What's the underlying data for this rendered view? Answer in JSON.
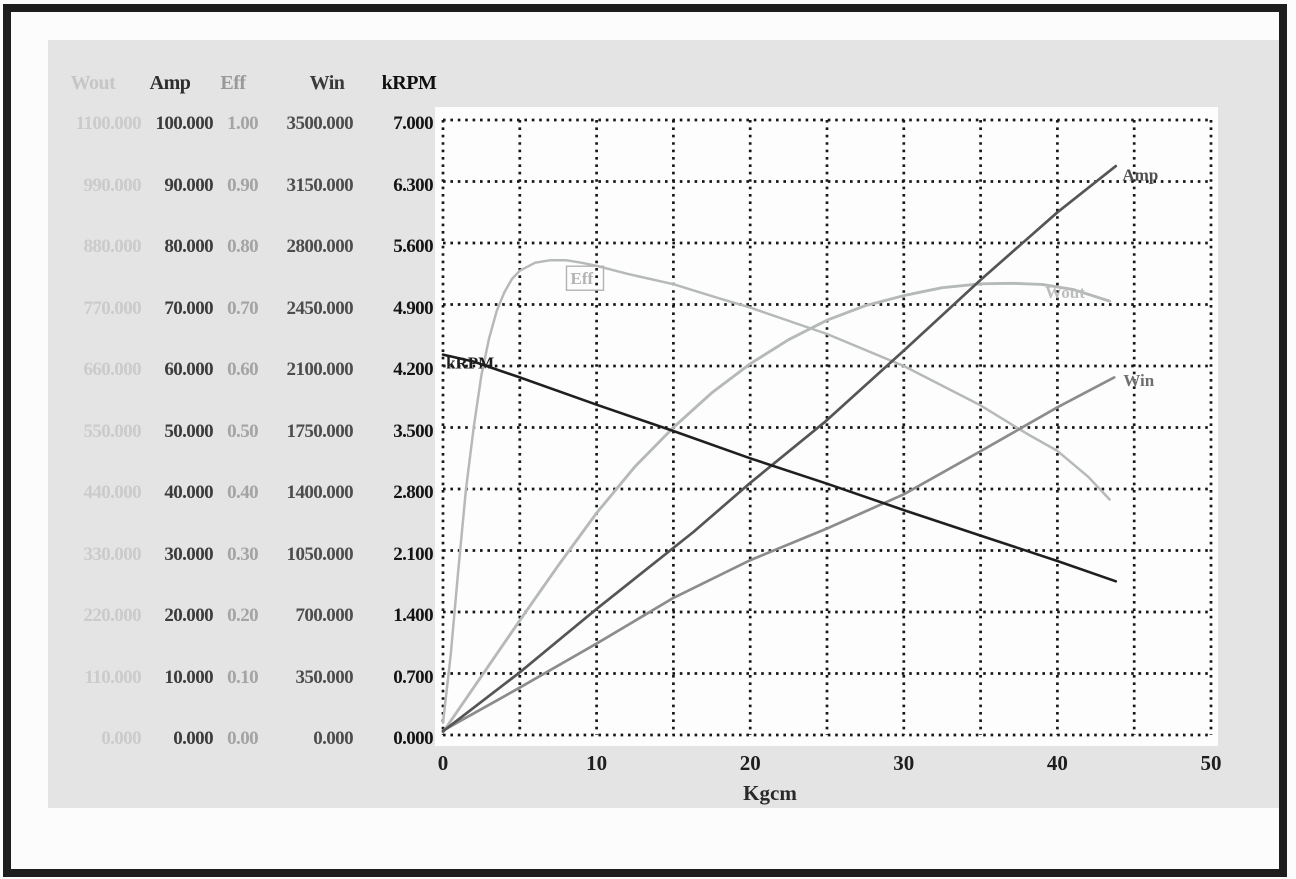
{
  "window": {
    "background": "#fcfcfc",
    "frame_color": "#1d1d1d",
    "panel_color": "#e4e4e4"
  },
  "table": {
    "columns": [
      {
        "id": "wout",
        "label": "Wout",
        "header_color": "#c6c6c6",
        "value_color": "#cbcbcb",
        "values": [
          "1100.000",
          "990.000",
          "880.000",
          "770.000",
          "660.000",
          "550.000",
          "440.000",
          "330.000",
          "220.000",
          "110.000",
          "0.000"
        ]
      },
      {
        "id": "amp",
        "label": "Amp",
        "header_color": "#2e2e2e",
        "value_color": "#3c3c3c",
        "values": [
          "100.000",
          "90.000",
          "80.000",
          "70.000",
          "60.000",
          "50.000",
          "40.000",
          "30.000",
          "20.000",
          "10.000",
          "0.000"
        ]
      },
      {
        "id": "eff",
        "label": "Eff",
        "header_color": "#999999",
        "value_color": "#a4a4a4",
        "values": [
          "1.00",
          "0.90",
          "0.80",
          "0.70",
          "0.60",
          "0.50",
          "0.40",
          "0.30",
          "0.20",
          "0.10",
          "0.00"
        ]
      },
      {
        "id": "win",
        "label": "Win",
        "header_color": "#3a3a3a",
        "value_color": "#4d4d4d",
        "values": [
          "3500.000",
          "3150.000",
          "2800.000",
          "2450.000",
          "2100.000",
          "1750.000",
          "1400.000",
          "1050.000",
          "700.000",
          "350.000",
          "0.000"
        ]
      },
      {
        "id": "krpm",
        "label": "kRPM",
        "header_color": "#101010",
        "value_color": "#141414",
        "values": [
          "7.000",
          "6.300",
          "5.600",
          "4.900",
          "4.200",
          "3.500",
          "2.800",
          "2.100",
          "1.400",
          "0.700",
          "0.000"
        ]
      }
    ]
  },
  "chart_data": {
    "type": "line",
    "title": "",
    "xlabel": "Kgcm",
    "x_range": [
      0,
      50
    ],
    "x_gridline_step": 5,
    "x_ticks": [
      "0",
      "10",
      "20",
      "30",
      "40",
      "50"
    ],
    "x_tick_values": [
      0,
      10,
      20,
      30,
      40,
      50
    ],
    "y_gridlines": 11,
    "grid": "dashed-black",
    "plot_bg": "#fdfdfd",
    "grid_color": "#171717",
    "tick_color": "#1e1e1e",
    "series": [
      {
        "name": "Wout",
        "axis_max": 1100,
        "color": "#b6bab7",
        "width": 2.9,
        "label": "Wout",
        "label_color": "#bdbdbd",
        "label_at": [
          40.5,
          782
        ],
        "label_anchor": "middle",
        "label_boxed": false,
        "points": [
          [
            0,
            5
          ],
          [
            2.5,
            105
          ],
          [
            5,
            205
          ],
          [
            7.5,
            303
          ],
          [
            10,
            397
          ],
          [
            12.5,
            480
          ],
          [
            15,
            550
          ],
          [
            17.5,
            612
          ],
          [
            20,
            664
          ],
          [
            22.5,
            707
          ],
          [
            25,
            742
          ],
          [
            27.5,
            768
          ],
          [
            30,
            786
          ],
          [
            32.5,
            800
          ],
          [
            35,
            807
          ],
          [
            37,
            808
          ],
          [
            39,
            806
          ],
          [
            41,
            797
          ],
          [
            43.4,
            776
          ]
        ]
      },
      {
        "name": "Eff",
        "axis_max": 1.0,
        "color": "#b6bab7",
        "width": 2.5,
        "label": "Eff",
        "label_color": "#b3b3b3",
        "label_at": [
          8.3,
          0.733
        ],
        "label_anchor": "start",
        "label_boxed": true,
        "points": [
          [
            0,
            0.02
          ],
          [
            0.5,
            0.13
          ],
          [
            1,
            0.27
          ],
          [
            1.5,
            0.4
          ],
          [
            2,
            0.5
          ],
          [
            2.5,
            0.585
          ],
          [
            3,
            0.645
          ],
          [
            3.5,
            0.69
          ],
          [
            4,
            0.72
          ],
          [
            4.5,
            0.742
          ],
          [
            5,
            0.755
          ],
          [
            6,
            0.768
          ],
          [
            7,
            0.772
          ],
          [
            8,
            0.772
          ],
          [
            9,
            0.768
          ],
          [
            10,
            0.763
          ],
          [
            12,
            0.75
          ],
          [
            15,
            0.733
          ],
          [
            18,
            0.71
          ],
          [
            20,
            0.695
          ],
          [
            25,
            0.652
          ],
          [
            30,
            0.6
          ],
          [
            35,
            0.536
          ],
          [
            38,
            0.49
          ],
          [
            40,
            0.462
          ],
          [
            42,
            0.42
          ],
          [
            43.4,
            0.383
          ]
        ]
      },
      {
        "name": "Win",
        "axis_max": 3500,
        "color": "#8c8c8c",
        "width": 2.7,
        "label": "Win",
        "label_color": "#6f6f6f",
        "label_at": [
          45.3,
          1985
        ],
        "label_anchor": "middle",
        "label_boxed": false,
        "points": [
          [
            0,
            25
          ],
          [
            5,
            270
          ],
          [
            10,
            520
          ],
          [
            15,
            780
          ],
          [
            20,
            995
          ],
          [
            25,
            1175
          ],
          [
            30,
            1370
          ],
          [
            35,
            1615
          ],
          [
            40,
            1865
          ],
          [
            43.7,
            2035
          ]
        ]
      },
      {
        "name": "Amp",
        "axis_max": 100,
        "color": "#555555",
        "width": 2.7,
        "label": "Amp",
        "label_color": "#4f4f4f",
        "label_at": [
          45.4,
          90.2
        ],
        "label_anchor": "middle",
        "label_boxed": false,
        "points": [
          [
            0,
            0.6
          ],
          [
            5,
            10.2
          ],
          [
            10,
            20.5
          ],
          [
            16.3,
            33
          ],
          [
            20,
            41
          ],
          [
            24.9,
            51
          ],
          [
            30,
            62.5
          ],
          [
            35,
            74
          ],
          [
            40,
            85
          ],
          [
            43.8,
            92.5
          ]
        ]
      },
      {
        "name": "kRPM",
        "axis_max": 7.0,
        "color": "#1f1f1f",
        "width": 2.6,
        "label": "kRPM",
        "label_color": "#1c1c1c",
        "label_at": [
          0.2,
          4.17
        ],
        "label_anchor": "start",
        "label_boxed": false,
        "points": [
          [
            0,
            4.33
          ],
          [
            2,
            4.25
          ],
          [
            5,
            4.07
          ],
          [
            10,
            3.76
          ],
          [
            15,
            3.46
          ],
          [
            20,
            3.15
          ],
          [
            25,
            2.86
          ],
          [
            30,
            2.56
          ],
          [
            35,
            2.27
          ],
          [
            40,
            1.98
          ],
          [
            43.8,
            1.75
          ]
        ]
      }
    ]
  }
}
